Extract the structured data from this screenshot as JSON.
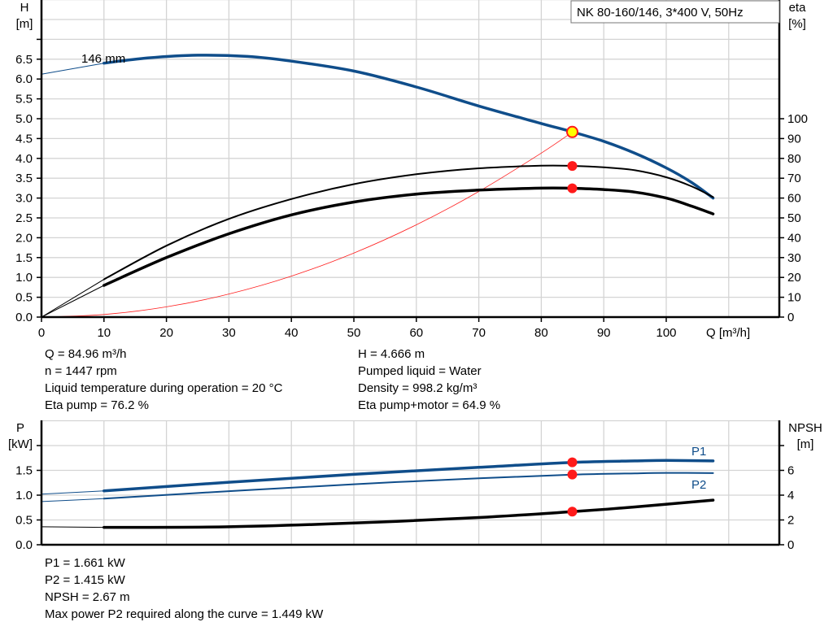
{
  "title": "NK 80-160/146, 3*400 V, 50Hz",
  "colors": {
    "head": "#0f4d8a",
    "eta": "#000000",
    "system": "#ff2020",
    "point": "#ff1a1a",
    "duty_fill": "#ffff00"
  },
  "info_top": {
    "left": [
      "Q = 84.96 m³/h",
      "n = 1447 rpm",
      "Liquid temperature during operation = 20 °C",
      "Eta pump = 76.2 %"
    ],
    "right": [
      "H = 4.666 m",
      "Pumped liquid = Water",
      "Density = 998.2 kg/m³",
      "Eta pump+motor = 64.9 %"
    ]
  },
  "info_bottom": [
    "P1 = 1.661 kW",
    "P2 = 1.415 kW",
    "NPSH = 2.67 m",
    "Max power P2 required along the curve = 1.449 kW"
  ],
  "chart_data": [
    {
      "type": "line",
      "title": "NK 80-160/146, 3*400 V, 50Hz",
      "xlabel": "Q [m³/h]",
      "ylabel_left": "H\n[m]",
      "ylabel_left_lines": [
        "H",
        "[m]"
      ],
      "ylabel_right_lines": [
        "eta",
        "[%]"
      ],
      "xlim": [
        0,
        118
      ],
      "ylim_left": [
        0,
        8
      ],
      "ylim_right": [
        0,
        160
      ],
      "x_ticks": [
        "0",
        "10",
        "20",
        "30",
        "40",
        "50",
        "60",
        "70",
        "80",
        "90",
        "100"
      ],
      "y_left_ticks": [
        "0.0",
        "0.5",
        "1.0",
        "1.5",
        "2.0",
        "2.5",
        "3.0",
        "3.5",
        "4.0",
        "4.5",
        "5.0",
        "5.5",
        "6.0",
        "6.5"
      ],
      "y_right_ticks": [
        "0",
        "10",
        "20",
        "30",
        "40",
        "50",
        "60",
        "70",
        "80",
        "90",
        "100"
      ],
      "grid": true,
      "annotation": "146 mm",
      "series": [
        {
          "name": "H",
          "axis": "left",
          "x": [
            10,
            17,
            25,
            33,
            40,
            50,
            60,
            70,
            80,
            85,
            90,
            95,
            100,
            104,
            107.5
          ],
          "y": [
            6.4,
            6.53,
            6.6,
            6.57,
            6.45,
            6.2,
            5.8,
            5.32,
            4.88,
            4.666,
            4.43,
            4.13,
            3.76,
            3.4,
            3.0
          ],
          "extrapolated": {
            "x": [
              0,
              10
            ],
            "y": [
              6.12,
              6.4
            ]
          }
        },
        {
          "name": "Eta pump",
          "axis": "right",
          "x": [
            10,
            20,
            30,
            40,
            50,
            60,
            70,
            80,
            85,
            90,
            95,
            100,
            104,
            107.5
          ],
          "y": [
            19,
            36,
            49.5,
            59.5,
            67,
            72,
            75,
            76.3,
            76.2,
            75.5,
            74,
            70.5,
            66,
            60.5
          ],
          "extrapolated": {
            "x": [
              0,
              10
            ],
            "y": [
              0,
              19
            ]
          }
        },
        {
          "name": "Eta pump+motor",
          "axis": "right",
          "x": [
            10,
            20,
            30,
            40,
            50,
            60,
            70,
            80,
            85,
            90,
            95,
            100,
            104,
            107.5
          ],
          "y": [
            16,
            30,
            42,
            51.5,
            58,
            62,
            64,
            65,
            64.9,
            64.3,
            63,
            60,
            56,
            52
          ],
          "extrapolated": {
            "x": [
              0,
              10
            ],
            "y": [
              0,
              16
            ]
          }
        },
        {
          "name": "System curve",
          "axis": "left",
          "x": [
            0,
            10,
            20,
            30,
            40,
            50,
            60,
            70,
            80,
            85
          ],
          "y": [
            0,
            0.065,
            0.258,
            0.581,
            1.033,
            1.615,
            2.325,
            3.165,
            4.134,
            4.666
          ]
        }
      ],
      "duty_point": {
        "Q": 84.96,
        "H": 4.666,
        "eta_pump": 76.2,
        "eta_pump_motor": 64.9
      }
    },
    {
      "type": "line",
      "ylabel_left_lines": [
        "P",
        "[kW]"
      ],
      "ylabel_right_lines": [
        "NPSH",
        "[m]"
      ],
      "xlim": [
        0,
        118
      ],
      "ylim_left": [
        0,
        2.5
      ],
      "ylim_right": [
        0,
        10
      ],
      "y_left_ticks": [
        "0.0",
        "0.5",
        "1.0",
        "1.5"
      ],
      "y_right_ticks": [
        "0",
        "2",
        "4",
        "6"
      ],
      "grid": true,
      "series": [
        {
          "name": "P1",
          "axis": "left",
          "x": [
            10,
            30,
            50,
            70,
            85,
            95,
            100,
            107.5
          ],
          "y": [
            1.085,
            1.26,
            1.42,
            1.56,
            1.661,
            1.69,
            1.7,
            1.69
          ],
          "extrapolated": {
            "x": [
              0,
              10
            ],
            "y": [
              1.02,
              1.085
            ]
          }
        },
        {
          "name": "P2",
          "axis": "left",
          "x": [
            10,
            30,
            50,
            70,
            85,
            95,
            100,
            107.5
          ],
          "y": [
            0.93,
            1.08,
            1.22,
            1.34,
            1.415,
            1.44,
            1.449,
            1.445
          ],
          "extrapolated": {
            "x": [
              0,
              10
            ],
            "y": [
              0.87,
              0.93
            ]
          }
        },
        {
          "name": "NPSH",
          "axis": "right",
          "x": [
            10,
            30,
            50,
            70,
            85,
            95,
            107.5
          ],
          "y": [
            1.4,
            1.45,
            1.75,
            2.2,
            2.67,
            3.05,
            3.6
          ],
          "extrapolated": {
            "x": [
              0,
              10
            ],
            "y": [
              1.45,
              1.4
            ]
          }
        }
      ],
      "duty_point": {
        "Q": 84.96,
        "P1": 1.661,
        "P2": 1.415,
        "NPSH": 2.67
      }
    }
  ]
}
